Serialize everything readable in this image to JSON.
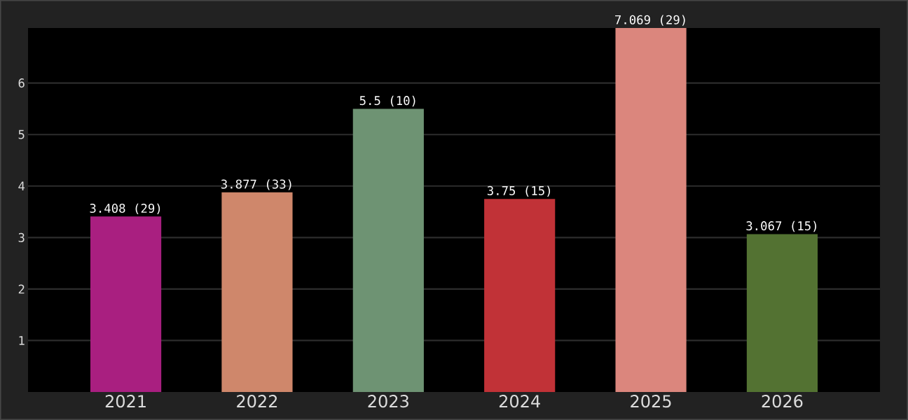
{
  "chart_data": {
    "type": "bar",
    "categories": [
      "2021",
      "2022",
      "2023",
      "2024",
      "2025",
      "2026"
    ],
    "values": [
      3.408,
      3.877,
      5.5,
      3.75,
      7.069,
      3.067
    ],
    "colors": [
      "#a91f80",
      "#cf876b",
      "#6e9373",
      "#c13237",
      "#db867d",
      "#537232"
    ],
    "value_labels": [
      "3.408 (29)",
      "3.877 (33)",
      "5.5 (10)",
      "3.75 (15)",
      "7.069 (29)",
      "3.067 (15)"
    ],
    "ylim": [
      0,
      7.069
    ],
    "yticks": [
      1,
      2,
      3,
      4,
      5,
      6
    ],
    "grid": "y"
  }
}
